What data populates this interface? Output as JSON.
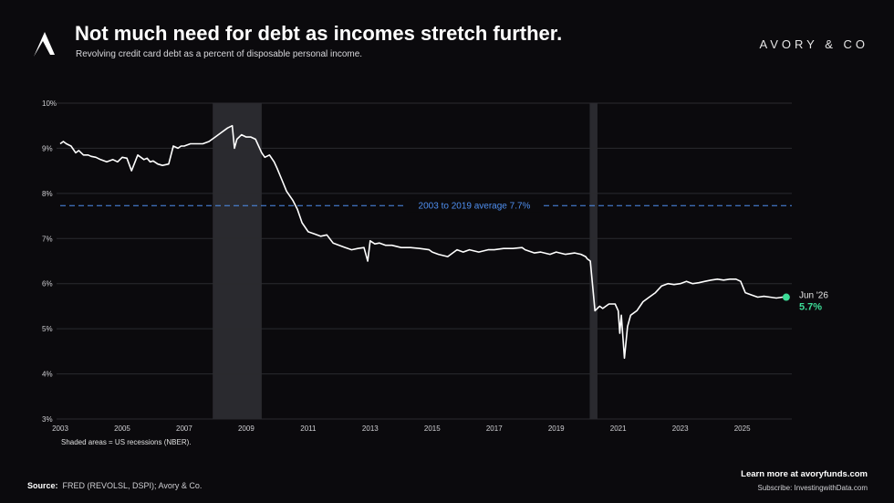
{
  "header": {
    "title": "Not much need for debt as incomes stretch further.",
    "subtitle": "Revolving credit card debt as a percent of disposable personal income.",
    "brand": "AVORY & CO"
  },
  "footer": {
    "note": "Shaded areas = US recessions (NBER).",
    "source_label": "Source:",
    "source_text": "FRED (REVOLSL, DSPI); Avory & Co.",
    "learn_more": "Learn more at avoryfunds.com",
    "subscribe": "Subscribe: InvestingwithData.com"
  },
  "colors": {
    "background": "#0b0a0d",
    "line": "#ffffff",
    "average": "#4f8ff0",
    "endpoint": "#3ddc97",
    "recession": "#2a2a2f",
    "grid": "#2b2b2f"
  },
  "chart_data": {
    "type": "line",
    "x_range": [
      2003,
      2026.6
    ],
    "ylim": [
      3,
      10
    ],
    "y_ticks": [
      "3%",
      "4%",
      "5%",
      "6%",
      "7%",
      "8%",
      "9%",
      "10%"
    ],
    "x_ticks": [
      "2003",
      "2005",
      "2007",
      "2009",
      "2011",
      "2013",
      "2015",
      "2017",
      "2019",
      "2021",
      "2023",
      "2025"
    ],
    "recessions": [
      [
        2007.92,
        2009.5
      ],
      [
        2020.08,
        2020.33
      ]
    ],
    "average": {
      "value": 7.73,
      "label": "2003 to 2019 average  7.7%"
    },
    "endpoint": {
      "x": 2026.42,
      "y": 5.7,
      "date_label": "Jun '26",
      "value_label": "5.7%"
    },
    "series": [
      {
        "x": [
          2003.0,
          2003.1,
          2003.2,
          2003.35,
          2003.5,
          2003.6,
          2003.75,
          2003.9,
          2004.0,
          2004.15,
          2004.3,
          2004.5,
          2004.7,
          2004.85,
          2005.0,
          2005.15,
          2005.3,
          2005.5,
          2005.6,
          2005.7,
          2005.8,
          2005.9,
          2006.0,
          2006.15,
          2006.3,
          2006.5,
          2006.65,
          2006.8,
          2006.9,
          2007.0,
          2007.2,
          2007.4,
          2007.6,
          2007.8,
          2008.0,
          2008.2,
          2008.4,
          2008.55,
          2008.62,
          2008.7,
          2008.85,
          2009.0,
          2009.15,
          2009.3,
          2009.5,
          2009.6,
          2009.75,
          2009.9,
          2010.0,
          2010.15,
          2010.3,
          2010.5,
          2010.65,
          2010.8,
          2011.0,
          2011.2,
          2011.4,
          2011.6,
          2011.8,
          2012.0,
          2012.2,
          2012.4,
          2012.6,
          2012.8,
          2012.92,
          2013.0,
          2013.15,
          2013.3,
          2013.5,
          2013.7,
          2014.0,
          2014.3,
          2014.6,
          2014.9,
          2015.0,
          2015.2,
          2015.5,
          2015.8,
          2016.0,
          2016.2,
          2016.5,
          2016.8,
          2017.0,
          2017.3,
          2017.6,
          2017.9,
          2018.0,
          2018.3,
          2018.5,
          2018.8,
          2019.0,
          2019.3,
          2019.6,
          2019.8,
          2019.95,
          2020.0,
          2020.1,
          2020.25,
          2020.4,
          2020.5,
          2020.7,
          2020.9,
          2021.0,
          2021.05,
          2021.1,
          2021.2,
          2021.3,
          2021.4,
          2021.6,
          2021.8,
          2022.0,
          2022.2,
          2022.4,
          2022.6,
          2022.8,
          2023.0,
          2023.2,
          2023.4,
          2023.6,
          2023.8,
          2024.0,
          2024.2,
          2024.4,
          2024.6,
          2024.8,
          2024.95,
          2025.1,
          2025.3,
          2025.5,
          2025.7,
          2025.9,
          2026.1,
          2026.3,
          2026.42
        ],
        "y": [
          9.1,
          9.15,
          9.1,
          9.05,
          8.9,
          8.95,
          8.85,
          8.85,
          8.82,
          8.8,
          8.75,
          8.7,
          8.75,
          8.7,
          8.8,
          8.78,
          8.5,
          8.85,
          8.8,
          8.75,
          8.78,
          8.7,
          8.72,
          8.65,
          8.62,
          8.65,
          9.05,
          9.0,
          9.05,
          9.05,
          9.1,
          9.1,
          9.1,
          9.15,
          9.25,
          9.35,
          9.45,
          9.5,
          9.0,
          9.2,
          9.3,
          9.25,
          9.25,
          9.2,
          8.9,
          8.8,
          8.85,
          8.7,
          8.55,
          8.3,
          8.05,
          7.85,
          7.65,
          7.35,
          7.15,
          7.1,
          7.05,
          7.08,
          6.9,
          6.85,
          6.8,
          6.75,
          6.78,
          6.8,
          6.5,
          6.95,
          6.88,
          6.9,
          6.85,
          6.85,
          6.8,
          6.8,
          6.78,
          6.75,
          6.7,
          6.65,
          6.6,
          6.75,
          6.7,
          6.75,
          6.7,
          6.75,
          6.75,
          6.78,
          6.78,
          6.8,
          6.75,
          6.68,
          6.7,
          6.65,
          6.7,
          6.65,
          6.68,
          6.65,
          6.6,
          6.55,
          6.5,
          5.4,
          5.5,
          5.45,
          5.55,
          5.55,
          5.4,
          4.9,
          5.3,
          4.35,
          5.05,
          5.3,
          5.4,
          5.6,
          5.7,
          5.8,
          5.95,
          6.0,
          5.98,
          6.0,
          6.05,
          6.0,
          6.02,
          6.05,
          6.08,
          6.1,
          6.08,
          6.1,
          6.1,
          6.05,
          5.8,
          5.75,
          5.7,
          5.72,
          5.7,
          5.68,
          5.7,
          5.7
        ]
      }
    ]
  }
}
